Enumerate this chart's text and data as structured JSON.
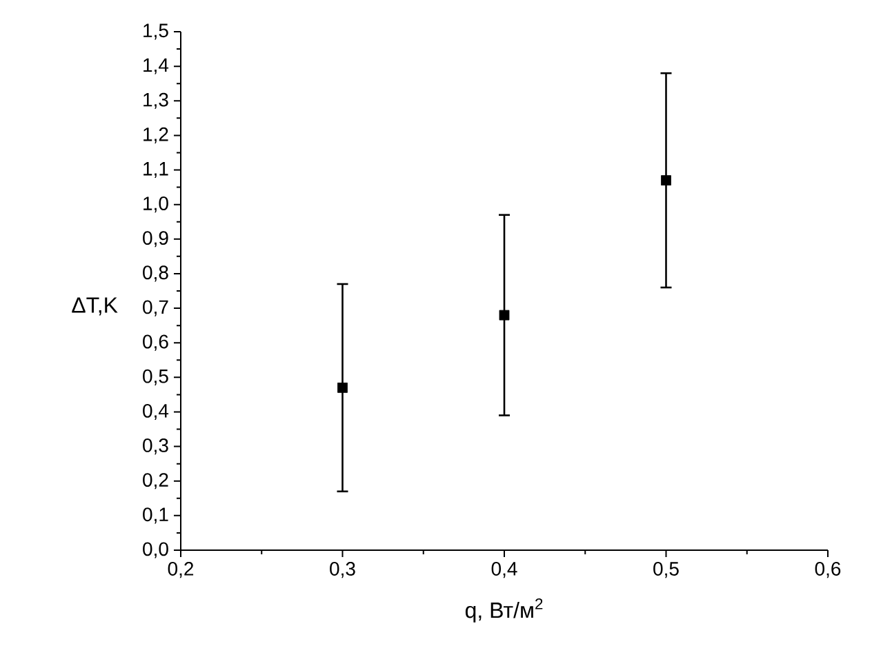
{
  "chart_data": {
    "type": "scatter",
    "xlabel": "q, Вт/м$^{2}$",
    "ylabel": "ΔT,K",
    "x": [
      0.3,
      0.4,
      0.5
    ],
    "values": [
      0.47,
      0.68,
      1.07
    ],
    "errors": [
      0.3,
      0.29,
      0.31
    ],
    "color": "#000000",
    "marker": "square",
    "grid": false,
    "xlim": [
      0.2,
      0.6
    ],
    "xticks": [
      {
        "value": 0.2,
        "label": "0,2"
      },
      {
        "value": 0.3,
        "label": "0,3"
      },
      {
        "value": 0.4,
        "label": "0,4"
      },
      {
        "value": 0.5,
        "label": "0,5"
      },
      {
        "value": 0.6,
        "label": "0,6"
      }
    ],
    "ylim": [
      0,
      1.5
    ],
    "yticks": [
      {
        "value": 0,
        "label": "0,0"
      },
      {
        "value": 0.1,
        "label": "0,1"
      },
      {
        "value": 0.2,
        "label": "0,2"
      },
      {
        "value": 0.3,
        "label": "0,3"
      },
      {
        "value": 0.4,
        "label": "0,4"
      },
      {
        "value": 0.5,
        "label": "0,5"
      },
      {
        "value": 0.6,
        "label": "0,6"
      },
      {
        "value": 0.7,
        "label": "0,7"
      },
      {
        "value": 0.8,
        "label": "0,8"
      },
      {
        "value": 0.9,
        "label": "0,9"
      },
      {
        "value": 1.0,
        "label": "1,0"
      },
      {
        "value": 1.1,
        "label": "1,1"
      },
      {
        "value": 1.2,
        "label": "1,2"
      },
      {
        "value": 1.3,
        "label": "1,3"
      },
      {
        "value": 1.4,
        "label": "1,4"
      },
      {
        "value": 1.5,
        "label": "1,5"
      }
    ]
  }
}
